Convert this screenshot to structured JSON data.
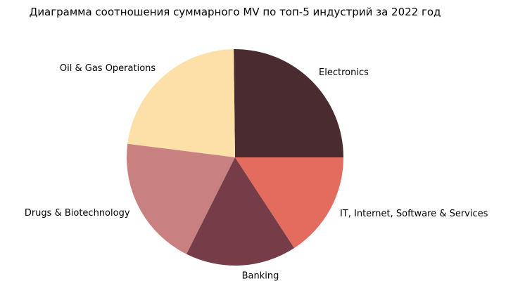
{
  "chart_data": {
    "type": "pie",
    "title": "Диаграмма соотношения суммарного MV по топ-5 индустрий за 2022 год",
    "start_angle_deg": 0,
    "direction": "counterclockwise",
    "legend": "none",
    "slices": [
      {
        "label": "Electronics",
        "value": 25.2,
        "color": "#4a2c30"
      },
      {
        "label": "Oil & Gas Operations",
        "value": 22.8,
        "color": "#fde0a8"
      },
      {
        "label": "Drugs & Biotechnology",
        "value": 19.6,
        "color": "#c98080"
      },
      {
        "label": "Banking",
        "value": 16.6,
        "color": "#763d49"
      },
      {
        "label": "IT, Internet, Software & Services",
        "value": 15.8,
        "color": "#e36c5e"
      }
    ]
  }
}
